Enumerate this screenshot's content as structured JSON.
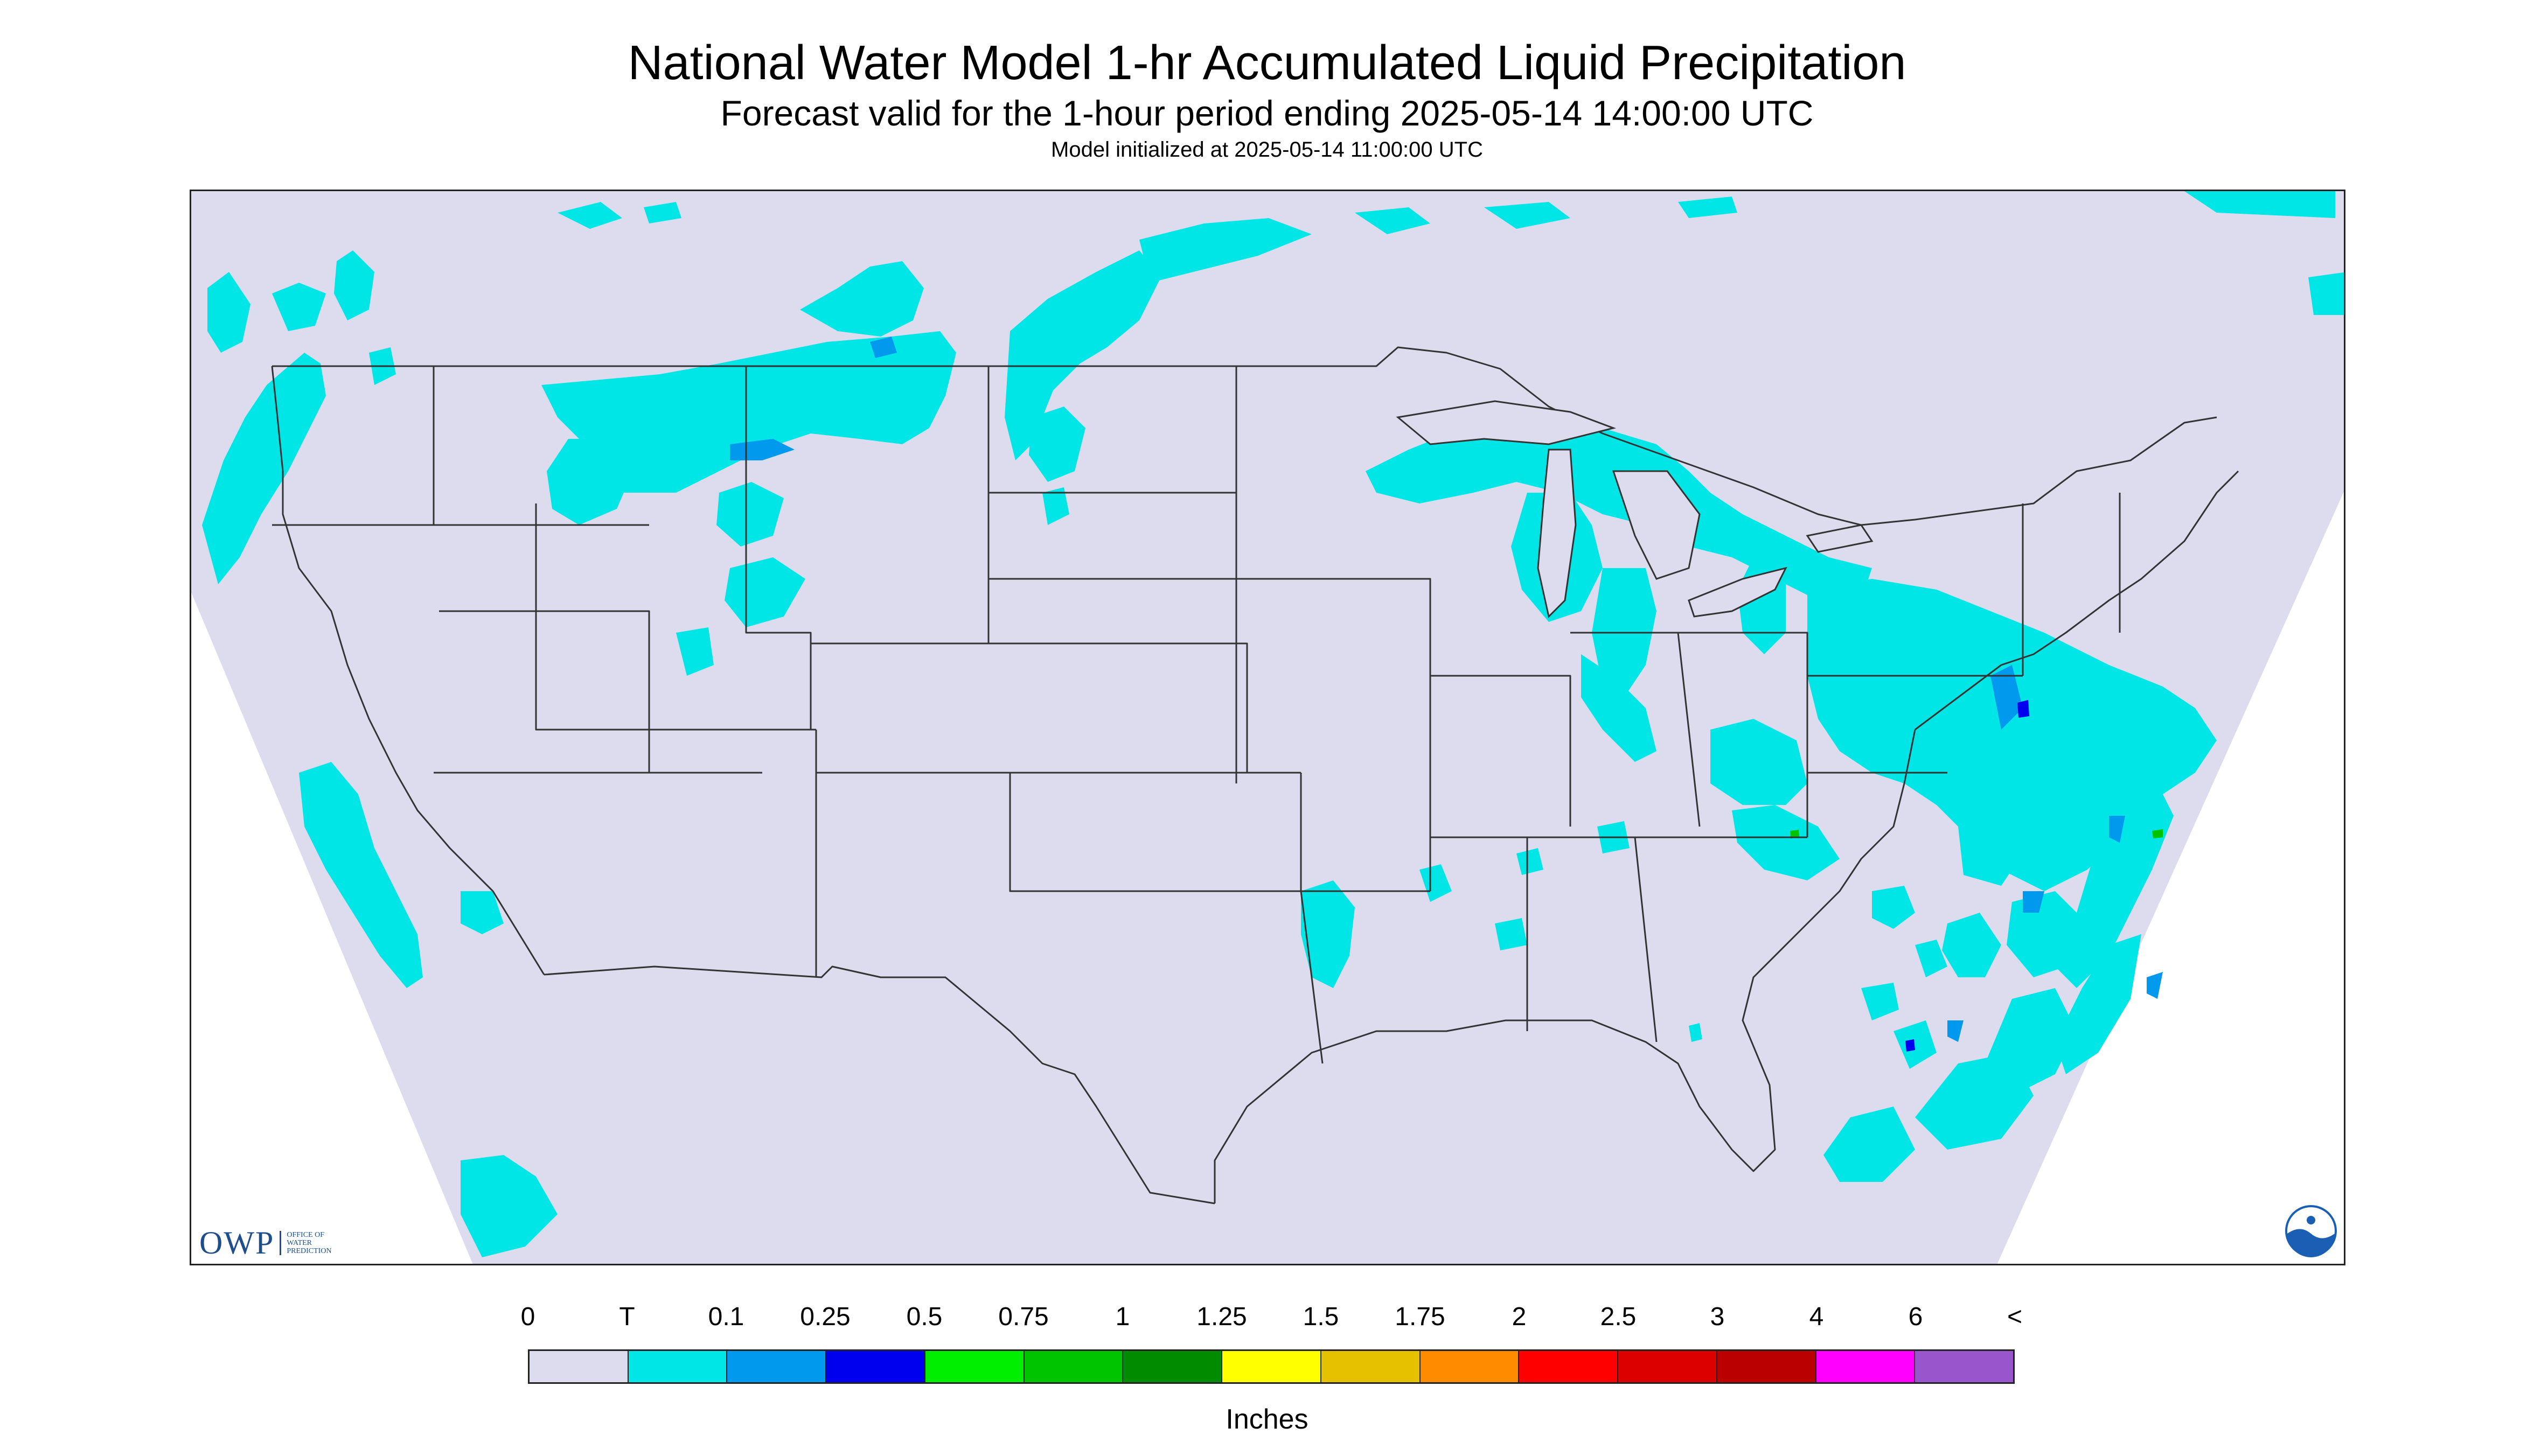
{
  "title": "National Water Model 1-hr Accumulated Liquid Precipitation",
  "subtitle": "Forecast valid for the 1-hour period ending 2025-05-14 14:00:00 UTC",
  "init_line": "Model initialized at 2025-05-14 11:00:00 UTC",
  "logos": {
    "owp_text": "OWP",
    "owp_sub": [
      "OFFICE OF",
      "WATER",
      "PREDICTION"
    ]
  },
  "colors": {
    "background": "#dcdcee",
    "outside_domain": "#ffffff",
    "boundaries": "#333333"
  },
  "legend": {
    "units": "Inches",
    "tick_labels": [
      "0",
      "T",
      "0.1",
      "0.25",
      "0.5",
      "0.75",
      "1",
      "1.25",
      "1.5",
      "1.75",
      "2",
      "2.5",
      "3",
      "4",
      "6",
      "<"
    ],
    "bins": [
      {
        "color": "#dcdcee"
      },
      {
        "color": "#00e5e5"
      },
      {
        "color": "#0099ee"
      },
      {
        "color": "#0000ee"
      },
      {
        "color": "#00ee00"
      },
      {
        "color": "#00c400"
      },
      {
        "color": "#008b00"
      },
      {
        "color": "#ffff00"
      },
      {
        "color": "#e5c100"
      },
      {
        "color": "#ff8c00"
      },
      {
        "color": "#ff0000"
      },
      {
        "color": "#dd0000"
      },
      {
        "color": "#bb0000"
      },
      {
        "color": "#ff00ff"
      },
      {
        "color": "#9955cc"
      }
    ]
  }
}
